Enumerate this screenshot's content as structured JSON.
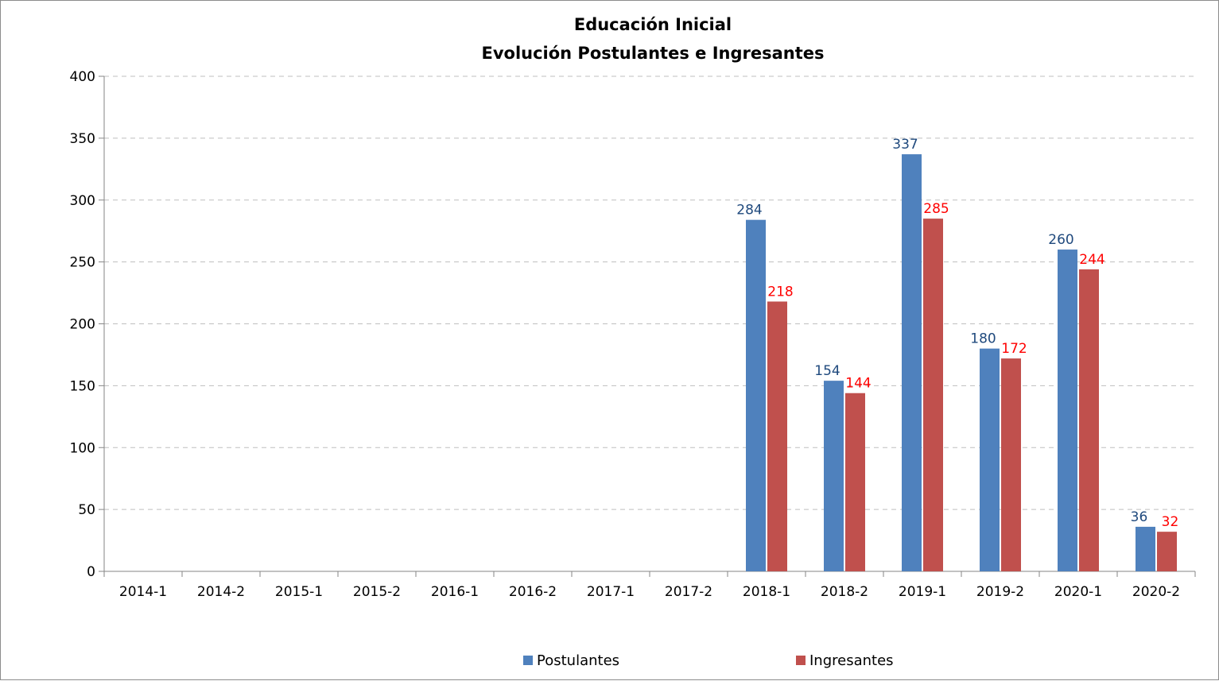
{
  "chart_data": {
    "type": "bar",
    "title": [
      "Educación Inicial",
      "Evolución Postulantes e Ingresantes"
    ],
    "categories": [
      "2014-1",
      "2014-2",
      "2015-1",
      "2015-2",
      "2016-1",
      "2016-2",
      "2017-1",
      "2017-2",
      "2018-1",
      "2018-2",
      "2019-1",
      "2019-2",
      "2020-1",
      "2020-2"
    ],
    "series": [
      {
        "name": "Postulantes",
        "color": "#4f81bd",
        "label_color": "#1f497d",
        "values": [
          null,
          null,
          null,
          null,
          null,
          null,
          null,
          null,
          284,
          154,
          337,
          180,
          260,
          36
        ]
      },
      {
        "name": "Ingresantes",
        "color": "#c0504d",
        "label_color": "#ff0000",
        "values": [
          null,
          null,
          null,
          null,
          null,
          null,
          null,
          null,
          218,
          144,
          285,
          172,
          244,
          32
        ]
      }
    ],
    "ylim": [
      0,
      400
    ],
    "yticks": [
      0,
      50,
      100,
      150,
      200,
      250,
      300,
      350,
      400
    ],
    "grid": true,
    "legend_position": "bottom"
  }
}
